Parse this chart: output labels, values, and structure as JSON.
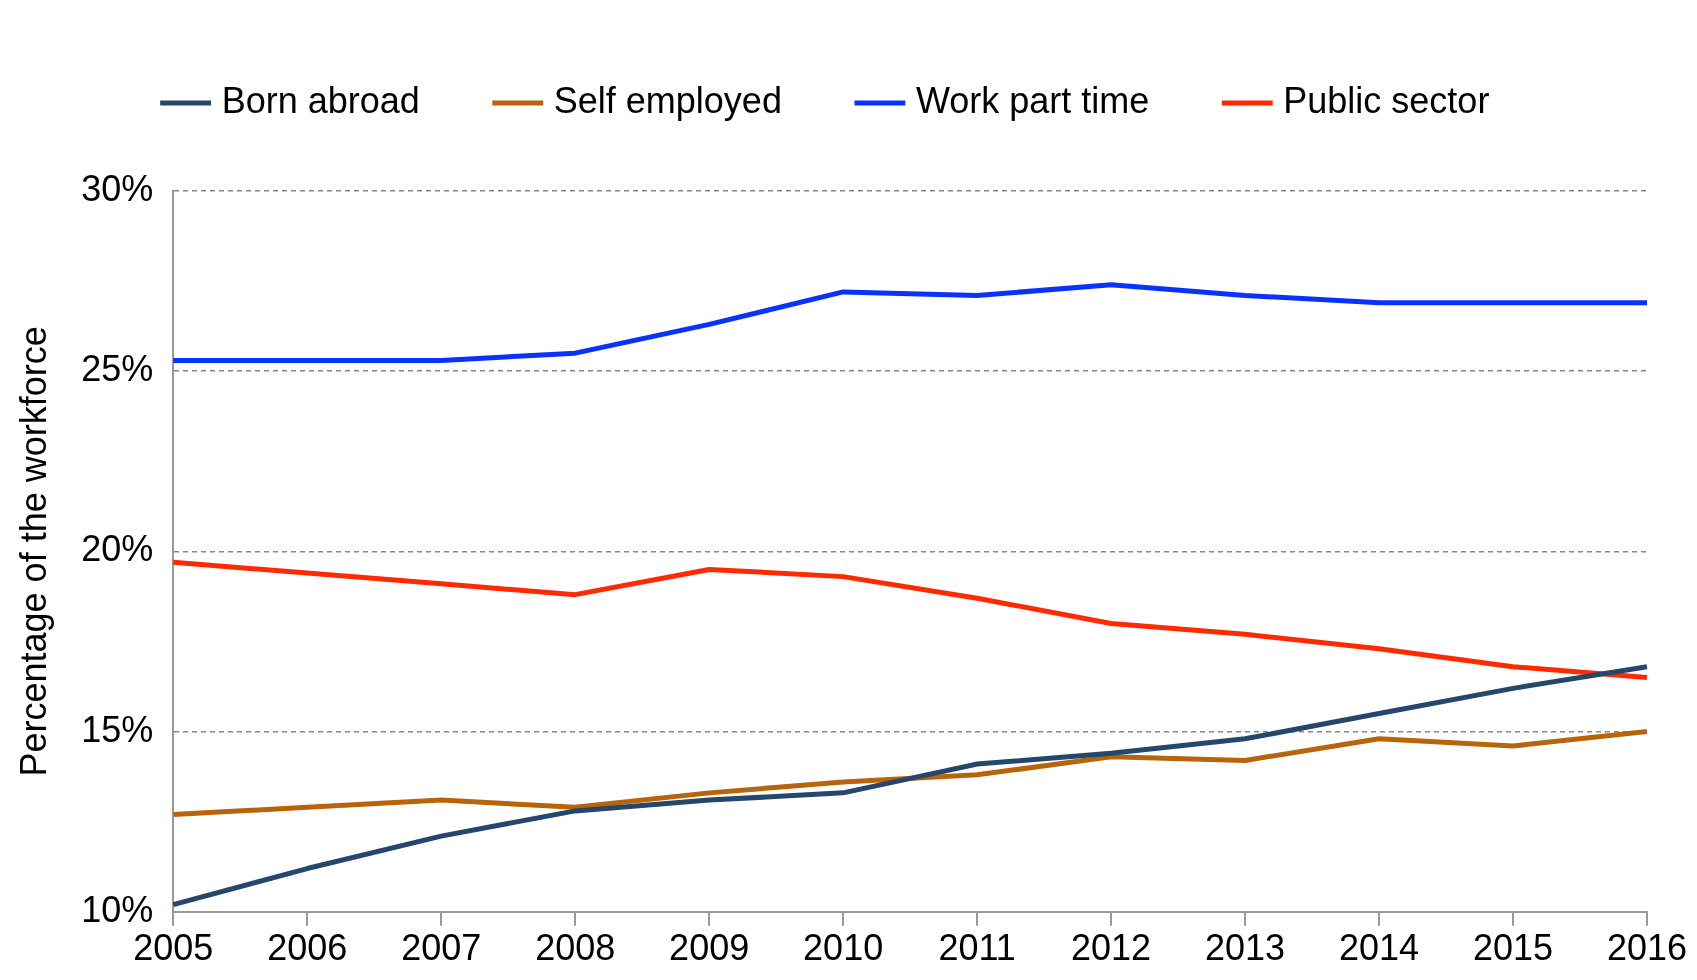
{
  "chart_data": {
    "type": "line",
    "ylabel": "Percentage of the workforce",
    "categories": [
      "2005",
      "2006",
      "2007",
      "2008",
      "2009",
      "2010",
      "2011",
      "2012",
      "2013",
      "2014",
      "2015",
      "2016"
    ],
    "series": [
      {
        "name": "Born abroad",
        "color": "#24476b",
        "values": [
          10.2,
          11.2,
          12.1,
          12.8,
          13.1,
          13.3,
          14.1,
          14.4,
          14.8,
          15.5,
          16.2,
          16.8
        ]
      },
      {
        "name": "Self employed",
        "color": "#b8640a",
        "values": [
          12.7,
          12.9,
          13.1,
          12.9,
          13.3,
          13.6,
          13.8,
          14.3,
          14.2,
          14.8,
          14.6,
          15.0
        ]
      },
      {
        "name": "Work part time",
        "color": "#0a32ff",
        "values": [
          25.3,
          25.3,
          25.3,
          25.5,
          26.3,
          27.2,
          27.1,
          27.4,
          27.1,
          26.9,
          26.9,
          26.9
        ]
      },
      {
        "name": "Public sector",
        "color": "#ff2a00",
        "values": [
          19.7,
          19.4,
          19.1,
          18.8,
          19.5,
          19.3,
          18.7,
          18.0,
          17.7,
          17.3,
          16.8,
          16.5
        ]
      }
    ],
    "ylim": [
      10,
      30
    ],
    "yticks": [
      {
        "value": 10,
        "label": "10%"
      },
      {
        "value": 15,
        "label": "15%"
      },
      {
        "value": 20,
        "label": "20%"
      },
      {
        "value": 25,
        "label": "25%"
      },
      {
        "value": 30,
        "label": "30%"
      }
    ],
    "grid": "y",
    "legend": "top",
    "marker": "none",
    "line_style": "solid"
  }
}
